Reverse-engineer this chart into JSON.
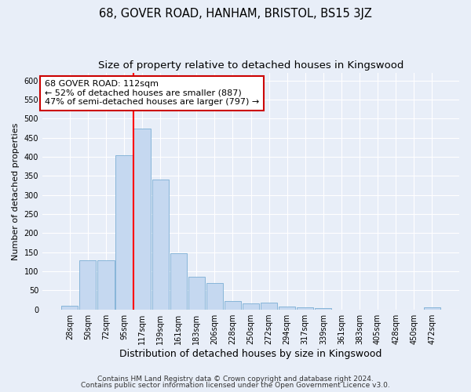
{
  "title": "68, GOVER ROAD, HANHAM, BRISTOL, BS15 3JZ",
  "subtitle": "Size of property relative to detached houses in Kingswood",
  "xlabel": "Distribution of detached houses by size in Kingswood",
  "ylabel": "Number of detached properties",
  "categories": [
    "28sqm",
    "50sqm",
    "72sqm",
    "95sqm",
    "117sqm",
    "139sqm",
    "161sqm",
    "183sqm",
    "206sqm",
    "228sqm",
    "250sqm",
    "272sqm",
    "294sqm",
    "317sqm",
    "339sqm",
    "361sqm",
    "383sqm",
    "405sqm",
    "428sqm",
    "450sqm",
    "472sqm"
  ],
  "values": [
    10,
    128,
    128,
    405,
    475,
    340,
    148,
    85,
    70,
    22,
    15,
    17,
    7,
    5,
    3,
    0,
    0,
    0,
    0,
    0,
    5
  ],
  "bar_color": "#c5d8f0",
  "bar_edge_color": "#7baed4",
  "red_line_index": 4,
  "annotation_line1": "68 GOVER ROAD: 112sqm",
  "annotation_line2": "← 52% of detached houses are smaller (887)",
  "annotation_line3": "47% of semi-detached houses are larger (797) →",
  "annotation_box_color": "#ffffff",
  "annotation_box_edge": "#cc0000",
  "background_color": "#e8eef8",
  "axes_background": "#e8eef8",
  "ylim": [
    0,
    620
  ],
  "yticks": [
    0,
    50,
    100,
    150,
    200,
    250,
    300,
    350,
    400,
    450,
    500,
    550,
    600
  ],
  "footer_line1": "Contains HM Land Registry data © Crown copyright and database right 2024.",
  "footer_line2": "Contains public sector information licensed under the Open Government Licence v3.0.",
  "title_fontsize": 10.5,
  "subtitle_fontsize": 9.5,
  "xlabel_fontsize": 9,
  "ylabel_fontsize": 8,
  "tick_fontsize": 7,
  "annotation_fontsize": 8,
  "footer_fontsize": 6.5
}
